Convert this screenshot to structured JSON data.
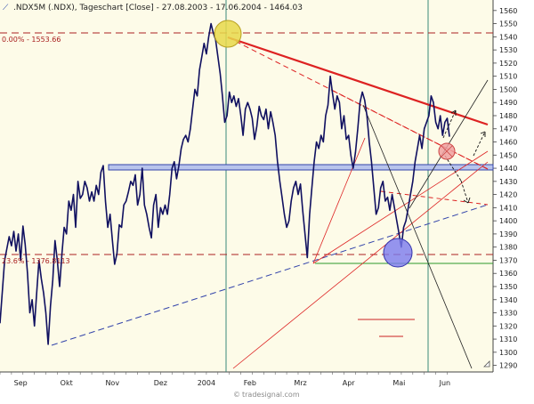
{
  "header": {
    "title": ".NDX5M (.NDX), Tageschart [Close] - 27.08.2003 - 17.06.2004 - 1464.03"
  },
  "annotations": {
    "fib_top": "0.00% - 1553.66",
    "fib_bottom": "23.6% - 1376.8113",
    "watermark": "tradesignal.com"
  },
  "colors": {
    "background": "#ffffff",
    "plot_background": "#fdfbe8",
    "price_line": "#101060",
    "vertical_lines": "#3a8a7a",
    "fib_lines": "#aa2222",
    "resistance": "#dd2222",
    "support_blue": "#3344aa",
    "green_line": "#2a9a2a",
    "highlight_yellow": "#e8d84a",
    "highlight_red": "#f0a0a0",
    "highlight_blue": "#7a7aee"
  },
  "chart_data": {
    "type": "line",
    "title": ".NDX5M (.NDX), Tageschart [Close] - 27.08.2003 - 17.06.2004 - 1464.03",
    "xlabel": "",
    "ylabel": "",
    "ylim": [
      1285,
      1568
    ],
    "yticks": [
      1290,
      1300,
      1310,
      1320,
      1330,
      1340,
      1350,
      1360,
      1370,
      1380,
      1390,
      1400,
      1410,
      1420,
      1430,
      1440,
      1450,
      1460,
      1470,
      1480,
      1490,
      1500,
      1510,
      1520,
      1530,
      1540,
      1550,
      1560
    ],
    "x_tick_labels": [
      "Sep",
      "Okt",
      "Nov",
      "Dez",
      "2004",
      "Feb",
      "Mrz",
      "Apr",
      "Mai",
      "Jun"
    ],
    "x_tick_positions": [
      9,
      29,
      49,
      70,
      90,
      109,
      131,
      152,
      174,
      194
    ],
    "x_range": [
      0,
      215
    ],
    "grid": false,
    "series": [
      {
        "values": [
          [
            0,
            1322
          ],
          [
            2,
            1370
          ],
          [
            4,
            1388
          ],
          [
            5,
            1381
          ],
          [
            6,
            1392
          ],
          [
            7,
            1377
          ],
          [
            8,
            1390
          ],
          [
            9,
            1370
          ],
          [
            10,
            1396
          ],
          [
            11,
            1382
          ],
          [
            12,
            1360
          ],
          [
            13,
            1330
          ],
          [
            14,
            1340
          ],
          [
            15,
            1320
          ],
          [
            16,
            1345
          ],
          [
            17,
            1370
          ],
          [
            18,
            1356
          ],
          [
            19,
            1345
          ],
          [
            20,
            1330
          ],
          [
            21,
            1306
          ],
          [
            22,
            1335
          ],
          [
            23,
            1355
          ],
          [
            24,
            1385
          ],
          [
            25,
            1370
          ],
          [
            26,
            1350
          ],
          [
            27,
            1375
          ],
          [
            28,
            1395
          ],
          [
            29,
            1390
          ],
          [
            30,
            1415
          ],
          [
            31,
            1408
          ],
          [
            32,
            1420
          ],
          [
            33,
            1395
          ],
          [
            34,
            1430
          ],
          [
            35,
            1417
          ],
          [
            36,
            1420
          ],
          [
            37,
            1430
          ],
          [
            38,
            1425
          ],
          [
            39,
            1415
          ],
          [
            40,
            1422
          ],
          [
            41,
            1415
          ],
          [
            42,
            1427
          ],
          [
            43,
            1420
          ],
          [
            44,
            1437
          ],
          [
            45,
            1442
          ],
          [
            46,
            1415
          ],
          [
            47,
            1395
          ],
          [
            48,
            1405
          ],
          [
            49,
            1385
          ],
          [
            50,
            1367
          ],
          [
            51,
            1375
          ],
          [
            52,
            1397
          ],
          [
            53,
            1395
          ],
          [
            54,
            1412
          ],
          [
            55,
            1415
          ],
          [
            56,
            1422
          ],
          [
            57,
            1430
          ],
          [
            58,
            1427
          ],
          [
            59,
            1435
          ],
          [
            60,
            1412
          ],
          [
            61,
            1420
          ],
          [
            62,
            1440
          ],
          [
            63,
            1412
          ],
          [
            64,
            1405
          ],
          [
            65,
            1395
          ],
          [
            66,
            1387
          ],
          [
            67,
            1412
          ],
          [
            68,
            1420
          ],
          [
            69,
            1395
          ],
          [
            70,
            1410
          ],
          [
            71,
            1405
          ],
          [
            72,
            1412
          ],
          [
            73,
            1405
          ],
          [
            74,
            1420
          ],
          [
            75,
            1440
          ],
          [
            76,
            1445
          ],
          [
            77,
            1432
          ],
          [
            78,
            1442
          ],
          [
            79,
            1455
          ],
          [
            80,
            1462
          ],
          [
            81,
            1465
          ],
          [
            82,
            1460
          ],
          [
            83,
            1470
          ],
          [
            84,
            1485
          ],
          [
            85,
            1500
          ],
          [
            86,
            1495
          ],
          [
            87,
            1515
          ],
          [
            88,
            1525
          ],
          [
            89,
            1535
          ],
          [
            90,
            1527
          ],
          [
            91,
            1540
          ],
          [
            92,
            1550
          ],
          [
            93,
            1543
          ],
          [
            94,
            1538
          ],
          [
            95,
            1525
          ],
          [
            96,
            1512
          ],
          [
            97,
            1495
          ],
          [
            98,
            1475
          ],
          [
            99,
            1480
          ],
          [
            100,
            1498
          ],
          [
            101,
            1490
          ],
          [
            102,
            1495
          ],
          [
            103,
            1487
          ],
          [
            104,
            1493
          ],
          [
            105,
            1480
          ],
          [
            106,
            1465
          ],
          [
            107,
            1485
          ],
          [
            108,
            1490
          ],
          [
            109,
            1485
          ],
          [
            110,
            1478
          ],
          [
            111,
            1462
          ],
          [
            112,
            1472
          ],
          [
            113,
            1487
          ],
          [
            114,
            1480
          ],
          [
            115,
            1477
          ],
          [
            116,
            1485
          ],
          [
            117,
            1470
          ],
          [
            118,
            1483
          ],
          [
            119,
            1475
          ],
          [
            120,
            1465
          ],
          [
            121,
            1445
          ],
          [
            122,
            1430
          ],
          [
            123,
            1418
          ],
          [
            124,
            1405
          ],
          [
            125,
            1395
          ],
          [
            126,
            1400
          ],
          [
            127,
            1415
          ],
          [
            128,
            1425
          ],
          [
            129,
            1430
          ],
          [
            130,
            1420
          ],
          [
            131,
            1428
          ],
          [
            132,
            1408
          ],
          [
            133,
            1390
          ],
          [
            134,
            1372
          ],
          [
            135,
            1405
          ],
          [
            136,
            1425
          ],
          [
            137,
            1445
          ],
          [
            138,
            1460
          ],
          [
            139,
            1455
          ],
          [
            140,
            1465
          ],
          [
            141,
            1460
          ],
          [
            142,
            1480
          ],
          [
            143,
            1488
          ],
          [
            144,
            1510
          ],
          [
            145,
            1497
          ],
          [
            146,
            1485
          ],
          [
            147,
            1495
          ],
          [
            148,
            1490
          ],
          [
            149,
            1470
          ],
          [
            150,
            1480
          ],
          [
            151,
            1462
          ],
          [
            152,
            1465
          ],
          [
            153,
            1450
          ],
          [
            154,
            1440
          ],
          [
            155,
            1452
          ],
          [
            156,
            1470
          ],
          [
            157,
            1490
          ],
          [
            158,
            1498
          ],
          [
            159,
            1492
          ],
          [
            160,
            1480
          ],
          [
            161,
            1460
          ],
          [
            162,
            1445
          ],
          [
            163,
            1425
          ],
          [
            164,
            1405
          ],
          [
            165,
            1410
          ],
          [
            166,
            1425
          ],
          [
            167,
            1430
          ],
          [
            168,
            1415
          ],
          [
            169,
            1418
          ],
          [
            170,
            1408
          ],
          [
            171,
            1420
          ],
          [
            172,
            1410
          ],
          [
            173,
            1400
          ],
          [
            174,
            1390
          ],
          [
            175,
            1380
          ],
          [
            176,
            1395
          ],
          [
            177,
            1400
          ],
          [
            178,
            1410
          ],
          [
            179,
            1420
          ],
          [
            180,
            1430
          ],
          [
            181,
            1445
          ],
          [
            182,
            1455
          ],
          [
            183,
            1465
          ],
          [
            184,
            1455
          ],
          [
            185,
            1470
          ],
          [
            186,
            1475
          ],
          [
            187,
            1480
          ],
          [
            188,
            1495
          ],
          [
            189,
            1490
          ],
          [
            190,
            1475
          ],
          [
            191,
            1470
          ],
          [
            192,
            1480
          ],
          [
            193,
            1465
          ],
          [
            194,
            1475
          ],
          [
            195,
            1478
          ],
          [
            196,
            1464
          ]
        ]
      }
    ]
  }
}
